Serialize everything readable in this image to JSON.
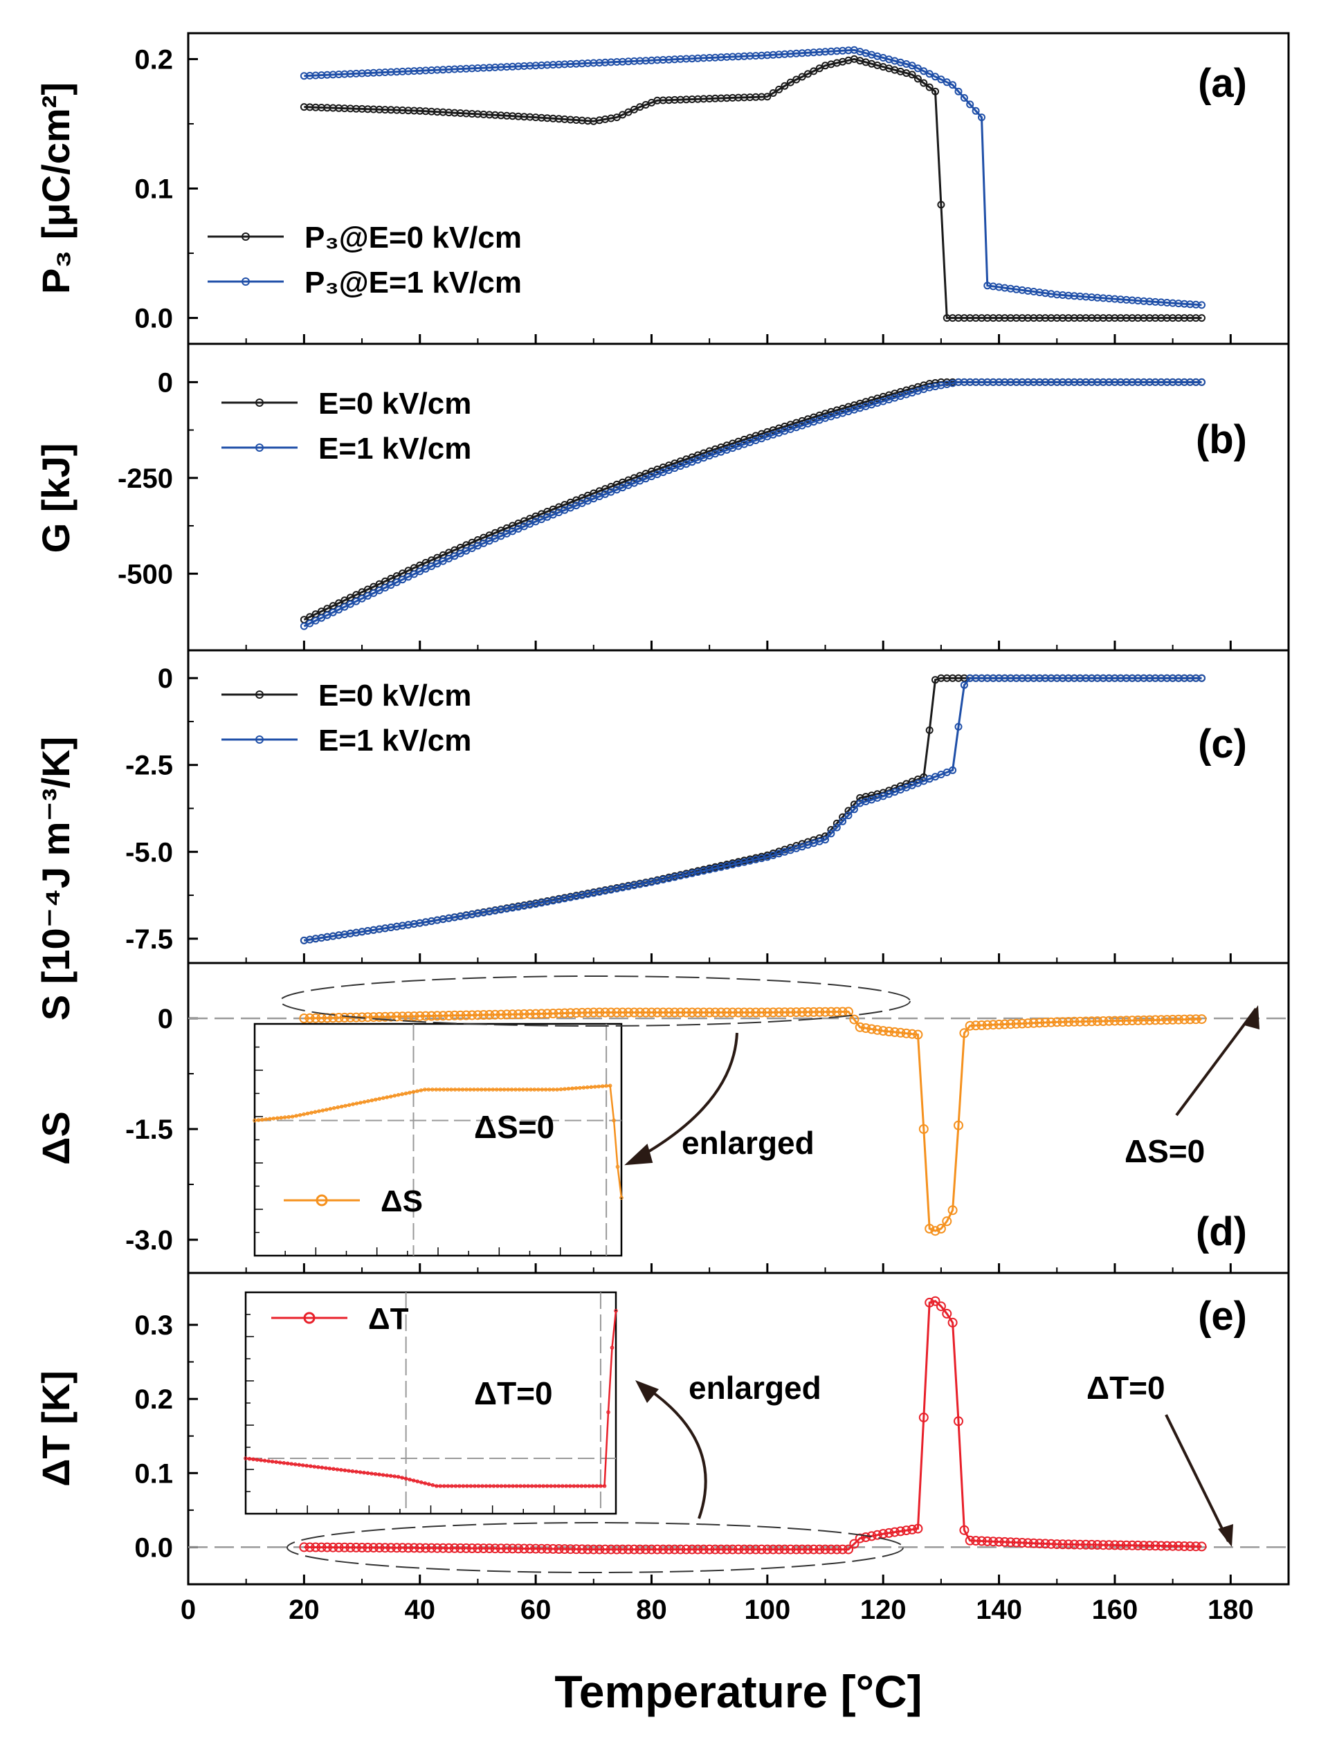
{
  "figure": {
    "xlabel": "Temperature [°C]",
    "xticks": [
      0,
      20,
      40,
      60,
      80,
      100,
      120,
      140,
      160,
      180
    ],
    "xlim": [
      0,
      190
    ]
  },
  "colors": {
    "black_series": "#1a1a1a",
    "blue_series": "#1f4fa8",
    "orange_series": "#f5911e",
    "red_series": "#e8202a",
    "zero_dash": "#999999"
  },
  "chart_data": [
    {
      "id": "a",
      "type": "line",
      "panel_label": "(a)",
      "ylabel": "P₃ [μC/cm²]",
      "ylim": [
        -0.02,
        0.22
      ],
      "yticks": [
        0.0,
        0.1,
        0.2
      ],
      "ytick_labels": [
        "0.0",
        "0.1",
        "0.2"
      ],
      "legend_position": "middle-left",
      "series": [
        {
          "name": "P₃@E=0 kV/cm",
          "color": "#1a1a1a",
          "points": [
            [
              20,
              0.163
            ],
            [
              40,
              0.16
            ],
            [
              60,
              0.155
            ],
            [
              70,
              0.152
            ],
            [
              74,
              0.155
            ],
            [
              78,
              0.163
            ],
            [
              81,
              0.168
            ],
            [
              100,
              0.171
            ],
            [
              104,
              0.182
            ],
            [
              110,
              0.195
            ],
            [
              115,
              0.2
            ],
            [
              125,
              0.188
            ],
            [
              129,
              0.175
            ],
            [
              131,
              0.0
            ],
            [
              175,
              0.0
            ]
          ]
        },
        {
          "name": "P₃@E=1 kV/cm",
          "color": "#1f4fa8",
          "points": [
            [
              20,
              0.187
            ],
            [
              60,
              0.195
            ],
            [
              100,
              0.203
            ],
            [
              115,
              0.207
            ],
            [
              125,
              0.195
            ],
            [
              132,
              0.18
            ],
            [
              135,
              0.165
            ],
            [
              137,
              0.155
            ],
            [
              138,
              0.025
            ],
            [
              150,
              0.018
            ],
            [
              165,
              0.013
            ],
            [
              175,
              0.01
            ]
          ]
        }
      ]
    },
    {
      "id": "b",
      "type": "line",
      "panel_label": "(b)",
      "ylabel": "G [kJ]",
      "ylim": [
        -700,
        100
      ],
      "yticks": [
        0,
        -250,
        -500
      ],
      "ytick_labels": [
        "0",
        "-250",
        "-500"
      ],
      "legend_position": "top-left",
      "series": [
        {
          "name": "E=0 kV/cm",
          "color": "#1a1a1a",
          "points": [
            [
              20,
              -620
            ],
            [
              30,
              -548
            ],
            [
              40,
              -478
            ],
            [
              50,
              -412
            ],
            [
              60,
              -350
            ],
            [
              70,
              -290
            ],
            [
              80,
              -233
            ],
            [
              90,
              -180
            ],
            [
              100,
              -130
            ],
            [
              110,
              -82
            ],
            [
              120,
              -38
            ],
            [
              128,
              -4
            ],
            [
              130,
              0
            ],
            [
              175,
              0
            ]
          ]
        },
        {
          "name": "E=1 kV/cm",
          "color": "#1f4fa8",
          "points": [
            [
              20,
              -637
            ],
            [
              30,
              -565
            ],
            [
              40,
              -494
            ],
            [
              50,
              -427
            ],
            [
              60,
              -364
            ],
            [
              70,
              -304
            ],
            [
              80,
              -246
            ],
            [
              90,
              -192
            ],
            [
              100,
              -142
            ],
            [
              110,
              -94
            ],
            [
              120,
              -50
            ],
            [
              128,
              -14
            ],
            [
              133,
              0
            ],
            [
              175,
              0
            ]
          ]
        }
      ]
    },
    {
      "id": "c",
      "type": "line",
      "panel_label": "(c)",
      "ylabel": "S [10⁻⁴J m⁻³/K]",
      "ylim": [
        -8.2,
        0.8
      ],
      "yticks": [
        0,
        -2.5,
        -5.0,
        -7.5
      ],
      "ytick_labels": [
        "0",
        "-2.5",
        "-5.0",
        "-7.5"
      ],
      "legend_position": "top-left",
      "series": [
        {
          "name": "E=0 kV/cm",
          "color": "#1a1a1a",
          "points": [
            [
              20,
              -7.55
            ],
            [
              40,
              -7.05
            ],
            [
              60,
              -6.48
            ],
            [
              80,
              -5.85
            ],
            [
              100,
              -5.1
            ],
            [
              110,
              -4.55
            ],
            [
              116,
              -3.45
            ],
            [
              120,
              -3.3
            ],
            [
              127,
              -2.85
            ],
            [
              128,
              -1.5
            ],
            [
              129,
              -0.05
            ],
            [
              130,
              0
            ],
            [
              175,
              0
            ]
          ]
        },
        {
          "name": "E=1 kV/cm",
          "color": "#1f4fa8",
          "points": [
            [
              20,
              -7.55
            ],
            [
              40,
              -7.05
            ],
            [
              60,
              -6.5
            ],
            [
              80,
              -5.87
            ],
            [
              100,
              -5.15
            ],
            [
              110,
              -4.65
            ],
            [
              116,
              -3.6
            ],
            [
              120,
              -3.4
            ],
            [
              132,
              -2.65
            ],
            [
              133,
              -1.4
            ],
            [
              134,
              -0.2
            ],
            [
              135,
              0
            ],
            [
              175,
              0
            ]
          ]
        }
      ]
    },
    {
      "id": "d",
      "type": "line",
      "panel_label": "(d)",
      "ylabel": "ΔS",
      "ylim": [
        -3.45,
        0.75
      ],
      "yticks": [
        0,
        -1.5,
        -3.0
      ],
      "ytick_labels": [
        "0",
        "-1.5",
        "-3.0"
      ],
      "legend_position": "inset",
      "series": [
        {
          "name": "ΔS",
          "color": "#f5911e",
          "points": [
            [
              20,
              0.0
            ],
            [
              40,
              0.03
            ],
            [
              60,
              0.06
            ],
            [
              70,
              0.08
            ],
            [
              80,
              0.08
            ],
            [
              100,
              0.08
            ],
            [
              114,
              0.09
            ],
            [
              116,
              -0.12
            ],
            [
              120,
              -0.17
            ],
            [
              126,
              -0.22
            ],
            [
              127,
              -1.5
            ],
            [
              128,
              -2.85
            ],
            [
              129,
              -2.88
            ],
            [
              130,
              -2.85
            ],
            [
              131,
              -2.75
            ],
            [
              132,
              -2.6
            ],
            [
              133,
              -1.45
            ],
            [
              134,
              -0.2
            ],
            [
              135,
              -0.1
            ],
            [
              150,
              -0.05
            ],
            [
              175,
              -0.01
            ]
          ]
        }
      ],
      "inset": {
        "legend_label": "ΔS",
        "zero_label": "ΔS=0",
        "points": [
          [
            20,
            0.0
          ],
          [
            30,
            0.01
          ],
          [
            40,
            0.03
          ],
          [
            50,
            0.05
          ],
          [
            60,
            0.07
          ],
          [
            65,
            0.08
          ],
          [
            70,
            0.08
          ],
          [
            80,
            0.08
          ],
          [
            100,
            0.08
          ],
          [
            114,
            0.09
          ],
          [
            115,
            0.0
          ],
          [
            116,
            -0.12
          ],
          [
            117,
            -0.2
          ]
        ],
        "ylim": [
          -0.35,
          0.25
        ]
      },
      "annotations": [
        "enlarged",
        "ΔS=0"
      ]
    },
    {
      "id": "e",
      "type": "line",
      "panel_label": "(e)",
      "ylabel": "ΔT [K]",
      "ylim": [
        -0.05,
        0.37
      ],
      "yticks": [
        0.0,
        0.1,
        0.2,
        0.3
      ],
      "ytick_labels": [
        "0.0",
        "0.1",
        "0.2",
        "0.3"
      ],
      "legend_position": "inset",
      "series": [
        {
          "name": "ΔT",
          "color": "#e8202a",
          "points": [
            [
              20,
              0.0
            ],
            [
              40,
              -0.001
            ],
            [
              60,
              -0.002
            ],
            [
              70,
              -0.003
            ],
            [
              80,
              -0.003
            ],
            [
              100,
              -0.003
            ],
            [
              114,
              -0.003
            ],
            [
              116,
              0.012
            ],
            [
              120,
              0.018
            ],
            [
              126,
              0.025
            ],
            [
              127,
              0.175
            ],
            [
              128,
              0.33
            ],
            [
              129,
              0.332
            ],
            [
              130,
              0.325
            ],
            [
              131,
              0.315
            ],
            [
              132,
              0.303
            ],
            [
              133,
              0.17
            ],
            [
              134,
              0.023
            ],
            [
              135,
              0.009
            ],
            [
              150,
              0.004
            ],
            [
              175,
              0.001
            ]
          ]
        }
      ],
      "inset": {
        "legend_label": "ΔT",
        "zero_label": "ΔT=0",
        "points": [
          [
            20,
            0.0
          ],
          [
            40,
            -0.001
          ],
          [
            60,
            -0.002
          ],
          [
            70,
            -0.003
          ],
          [
            80,
            -0.003
          ],
          [
            100,
            -0.003
          ],
          [
            114,
            -0.003
          ],
          [
            115,
            0.005
          ],
          [
            116,
            0.012
          ],
          [
            117,
            0.016
          ]
        ],
        "ylim": [
          -0.006,
          0.018
        ]
      },
      "annotations": [
        "enlarged",
        "ΔT=0"
      ]
    }
  ]
}
